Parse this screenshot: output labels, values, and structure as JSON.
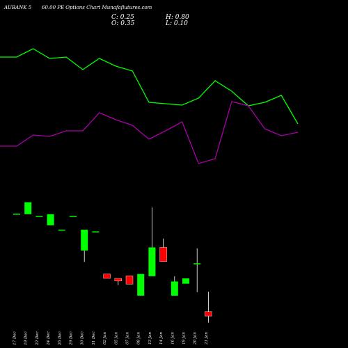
{
  "header": {
    "title_left": "AUBANK 5",
    "title_right": "60.00 PE Options Chart Munafaflutures.com",
    "close_label": "C: 0.25",
    "open_label": "O: 0.35",
    "high_label": "H: 0.80",
    "low_label": "L: 0.10"
  },
  "colors": {
    "background": "#000000",
    "up": "#00ff00",
    "down": "#ff0000",
    "line_top": "#00ff00",
    "line_mid": "#aa00aa",
    "wick": "#ffffff",
    "axis_text": "#ffffff"
  },
  "chart_data": {
    "type": "candlestick",
    "categories": [
      "17 Dec",
      "19 Dec",
      "22 Dec",
      "24 Dec",
      "26 Dec",
      "29 Dec",
      "30 Dec",
      "31 Dec",
      "02 Jan",
      "05 Jan",
      "07 Jan",
      "08 Jan",
      "13 Jan",
      "14 Jan",
      "16 Jan",
      "19 Jan",
      "20 Jan",
      "21 Jan"
    ],
    "candles": [
      {
        "o": 2.55,
        "h": 2.55,
        "l": 2.55,
        "c": 2.55
      },
      {
        "o": 2.55,
        "h": 2.82,
        "l": 2.55,
        "c": 2.82
      },
      {
        "o": 2.5,
        "h": 2.5,
        "l": 2.5,
        "c": 2.5
      },
      {
        "o": 2.3,
        "h": 2.55,
        "l": 2.3,
        "c": 2.55
      },
      {
        "o": 2.19,
        "h": 2.19,
        "l": 2.19,
        "c": 2.19
      },
      {
        "o": 2.5,
        "h": 2.5,
        "l": 2.5,
        "c": 2.5
      },
      {
        "o": 1.73,
        "h": 2.2,
        "l": 1.47,
        "c": 2.2
      },
      {
        "o": 2.15,
        "h": 2.15,
        "l": 2.15,
        "c": 2.15
      },
      {
        "o": 1.2,
        "h": 1.2,
        "l": 1.1,
        "c": 1.1
      },
      {
        "o": 1.1,
        "h": 1.1,
        "l": 0.95,
        "c": 1.04
      },
      {
        "o": 1.16,
        "h": 1.16,
        "l": 0.97,
        "c": 0.97
      },
      {
        "o": 0.71,
        "h": 1.2,
        "l": 0.71,
        "c": 1.2
      },
      {
        "o": 1.15,
        "h": 2.7,
        "l": 1.15,
        "c": 1.8
      },
      {
        "o": 1.8,
        "h": 2.0,
        "l": 1.48,
        "c": 1.48
      },
      {
        "o": 0.71,
        "h": 1.15,
        "l": 0.71,
        "c": 1.03
      },
      {
        "o": 0.98,
        "h": 1.1,
        "l": 0.98,
        "c": 1.1
      },
      {
        "o": 1.43,
        "h": 1.78,
        "l": 0.79,
        "c": 1.43
      },
      {
        "o": 0.35,
        "h": 0.8,
        "l": 0.1,
        "c": 0.25
      }
    ],
    "line_top": [
      82,
      82,
      70,
      84,
      82,
      100,
      84,
      95,
      102,
      147,
      149,
      151,
      141,
      116,
      131,
      152,
      147,
      137,
      178
    ],
    "line_mid": [
      210,
      210,
      194,
      196,
      188,
      188,
      162,
      172,
      180,
      200,
      188,
      175,
      235,
      228,
      146,
      152,
      185,
      195,
      190
    ],
    "ylim": [
      0,
      3.3
    ]
  }
}
